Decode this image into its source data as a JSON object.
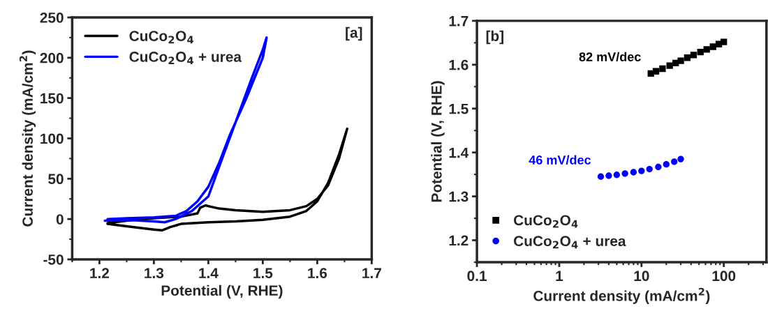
{
  "chart_data": [
    {
      "type": "line",
      "xlabel": "Potential (V, RHE)",
      "ylabel": "Current density (mA/cm$^{2}$)",
      "xlim": [
        1.15,
        1.7
      ],
      "xticks": [
        1.2,
        1.3,
        1.4,
        1.5,
        1.6,
        1.7
      ],
      "ylim": [
        -50,
        250
      ],
      "yticks": [
        -50,
        0,
        50,
        100,
        150,
        200,
        250
      ],
      "legend": "top left",
      "grid": false,
      "annotations": [
        "[a]"
      ],
      "series": [
        {
          "name": "CuCo$_{2}$O$_{4}$",
          "color": "#000000",
          "x": [
            1.215,
            1.25,
            1.3,
            1.315,
            1.33,
            1.35,
            1.4,
            1.45,
            1.5,
            1.55,
            1.58,
            1.6,
            1.62,
            1.64,
            1.655,
            1.64,
            1.62,
            1.6,
            1.58,
            1.55,
            1.5,
            1.45,
            1.42,
            1.4,
            1.395,
            1.385,
            1.38,
            1.35,
            1.3,
            1.25,
            1.215
          ],
          "values": [
            -6,
            -9,
            -13,
            -14,
            -10,
            -6,
            -4,
            -3,
            -1,
            3,
            10,
            22,
            45,
            80,
            112,
            75,
            42,
            25,
            16,
            11,
            9,
            11,
            13,
            16,
            17,
            14,
            7,
            3,
            1,
            -2,
            -5
          ]
        },
        {
          "name": "CuCo$_{2}$O$_{4}$ + urea",
          "color": "#0000ff",
          "x": [
            1.21,
            1.25,
            1.3,
            1.32,
            1.34,
            1.37,
            1.4,
            1.42,
            1.45,
            1.48,
            1.5,
            1.507,
            1.5,
            1.47,
            1.44,
            1.42,
            1.4,
            1.38,
            1.36,
            1.34,
            1.3,
            1.25,
            1.215
          ],
          "values": [
            -2,
            -1,
            -3,
            -4,
            0,
            10,
            28,
            65,
            120,
            175,
            210,
            225,
            200,
            150,
            105,
            70,
            40,
            22,
            10,
            4,
            2,
            1,
            0
          ]
        }
      ]
    },
    {
      "type": "scatter",
      "xlabel": "Current density (mA/cm$^{2}$)",
      "ylabel": "Potential (V, RHE)",
      "log": "x",
      "xlim": [
        0.1,
        330
      ],
      "xticks": [
        0.1,
        1,
        10,
        100
      ],
      "ylim": [
        1.15,
        1.7
      ],
      "yticks": [
        1.2,
        1.3,
        1.4,
        1.5,
        1.6,
        1.7
      ],
      "legend": "bottom left",
      "grid": false,
      "annotations": [
        {
          "text": "82 mV/dec",
          "x": 13,
          "y": 1.58
        },
        {
          "text": "46 mV/dec",
          "x": 3.2,
          "y": 1.345
        },
        "[b]"
      ],
      "series": [
        {
          "name": "CuCo$_{2}$O$_{4}$",
          "color": "#000000",
          "marker": "square",
          "x": [
            13,
            15,
            18,
            22,
            26,
            30,
            36,
            43,
            52,
            62,
            74,
            87,
            100
          ],
          "values": [
            1.58,
            1.585,
            1.591,
            1.598,
            1.604,
            1.609,
            1.616,
            1.622,
            1.629,
            1.635,
            1.641,
            1.647,
            1.652
          ]
        },
        {
          "name": "CuCo$_{2}$O$_{4}$ + urea",
          "color": "#0000ff",
          "marker": "circle",
          "x": [
            3.2,
            4,
            5,
            6.3,
            8,
            10,
            12.5,
            16,
            20,
            25,
            30
          ],
          "values": [
            1.345,
            1.347,
            1.349,
            1.352,
            1.355,
            1.358,
            1.362,
            1.367,
            1.373,
            1.379,
            1.385
          ]
        }
      ]
    }
  ]
}
